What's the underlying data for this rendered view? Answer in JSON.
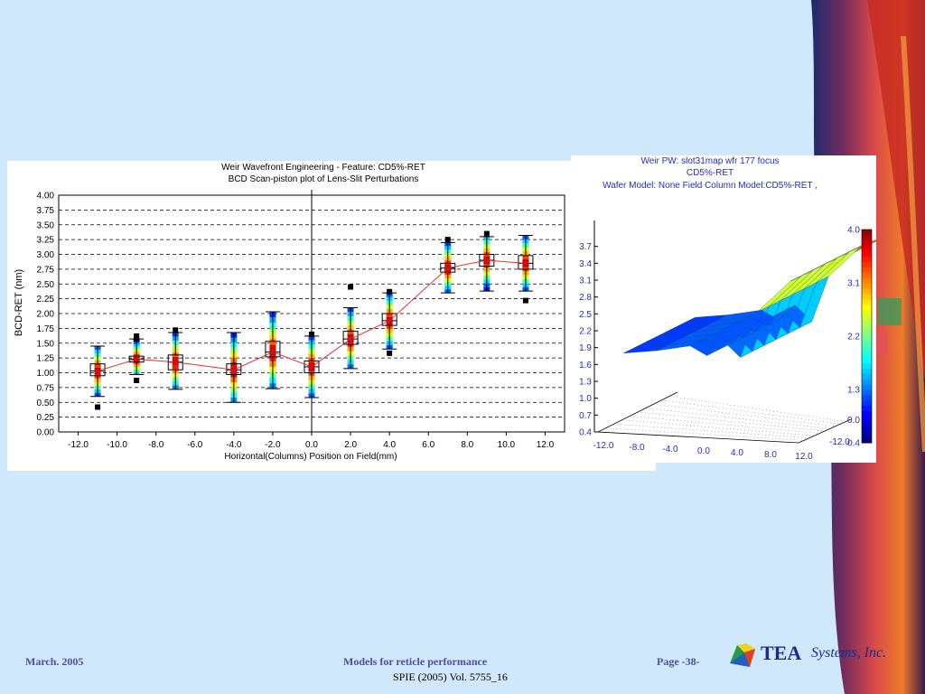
{
  "footer": {
    "date": "March. 2005",
    "title": "Models for reticle performance",
    "page": "Page -38-",
    "citation": "SPIE (2005) Vol. 5755_16"
  },
  "logo": {
    "text": "TEA",
    "sub": "Systems, Inc."
  },
  "colors": {
    "background": "#cfe8fb",
    "fit_line": "#e03030",
    "text_blue": "#1f2fbf"
  },
  "chart_data": [
    {
      "type": "box",
      "title": "Weir Wavefront Engineering - Feature: CD5%-RET",
      "subtitle": "BCD Scan-piston plot of Lens-Slit Perturbations",
      "xlabel": "Horizontal(Columns) Position on Field(mm)",
      "ylabel": "BCD-RET (nm)",
      "xlim": [
        -13,
        13
      ],
      "ylim": [
        0,
        4
      ],
      "xticks": [
        "-12.0",
        "-10.0",
        "-8.0",
        "-6.0",
        "-4.0",
        "-2.0",
        "0.0",
        "2.0",
        "4.0",
        "6.0",
        "8.0",
        "10.0",
        "12.0"
      ],
      "yticks": [
        "0.00",
        "0.25",
        "0.50",
        "0.75",
        "1.00",
        "1.25",
        "1.50",
        "1.75",
        "2.00",
        "2.25",
        "2.50",
        "2.75",
        "3.00",
        "3.25",
        "3.50",
        "3.75",
        "4.00"
      ],
      "grid": "horizontal dashed",
      "boxes": [
        {
          "x": -11,
          "min": 0.6,
          "q1": 0.95,
          "median": 1.03,
          "q3": 1.15,
          "max": 1.45,
          "outliers": [
            0.42
          ]
        },
        {
          "x": -9,
          "min": 0.97,
          "q1": 1.18,
          "median": 1.23,
          "q3": 1.28,
          "max": 1.57,
          "outliers": [
            0.87,
            1.57,
            1.62
          ]
        },
        {
          "x": -7,
          "min": 0.72,
          "q1": 1.05,
          "median": 1.18,
          "q3": 1.3,
          "max": 1.68,
          "outliers": [
            1.72
          ]
        },
        {
          "x": -4,
          "min": 0.5,
          "q1": 0.97,
          "median": 1.05,
          "q3": 1.15,
          "max": 1.68,
          "outliers": []
        },
        {
          "x": -2,
          "min": 0.73,
          "q1": 1.27,
          "median": 1.35,
          "q3": 1.53,
          "max": 2.03,
          "outliers": []
        },
        {
          "x": 0,
          "min": 0.58,
          "q1": 1.0,
          "median": 1.1,
          "q3": 1.2,
          "max": 1.62,
          "outliers": [
            1.65
          ]
        },
        {
          "x": 2,
          "min": 1.07,
          "q1": 1.48,
          "median": 1.57,
          "q3": 1.7,
          "max": 2.1,
          "outliers": [
            2.45
          ]
        },
        {
          "x": 4,
          "min": 1.4,
          "q1": 1.8,
          "median": 1.88,
          "q3": 2.0,
          "max": 2.35,
          "outliers": [
            1.33,
            2.37
          ]
        },
        {
          "x": 7,
          "min": 2.35,
          "q1": 2.7,
          "median": 2.77,
          "q3": 2.85,
          "max": 3.2,
          "outliers": [
            3.25
          ]
        },
        {
          "x": 9,
          "min": 2.38,
          "q1": 2.8,
          "median": 2.9,
          "q3": 3.0,
          "max": 3.3,
          "outliers": [
            3.35
          ]
        },
        {
          "x": 11,
          "min": 2.38,
          "q1": 2.75,
          "median": 2.85,
          "q3": 2.98,
          "max": 3.32,
          "outliers": [
            2.22
          ]
        }
      ],
      "fit_line": [
        [
          -11,
          1.03
        ],
        [
          -9,
          1.23
        ],
        [
          -7,
          1.18
        ],
        [
          -4,
          1.05
        ],
        [
          -2,
          1.35
        ],
        [
          0,
          1.1
        ],
        [
          2,
          1.57
        ],
        [
          4,
          1.88
        ],
        [
          7,
          2.77
        ],
        [
          9,
          2.9
        ],
        [
          11,
          2.85
        ]
      ]
    },
    {
      "type": "surface3d",
      "title": "Weir PW: slot31map wfr 177 focus",
      "subtitle": "CD5%-RET",
      "caption": "Wafer Model: None  Field Column Model:CD5%-RET ,",
      "zticks": [
        "0.4",
        "0.7",
        "1.0",
        "1.3",
        "1.6",
        "1.9",
        "2.2",
        "2.5",
        "2.8",
        "3.1",
        "3.4",
        "3.7"
      ],
      "xticks": [
        "-12.0",
        "-8.0",
        "-4.0",
        "0.0",
        "4.0",
        "8.0",
        "12.0"
      ],
      "yticks": [
        "-12.0",
        "0.0"
      ],
      "zlim": [
        0.4,
        4.0
      ],
      "colorbar_ticks": [
        "4.0",
        "3.1",
        "2.2",
        "1.3",
        "0.4"
      ],
      "x": [
        -12,
        -8,
        -4,
        -2,
        0,
        2,
        4,
        8,
        12
      ],
      "z": [
        1.0,
        1.1,
        1.25,
        1.05,
        1.4,
        1.05,
        2.1,
        2.85,
        3.2
      ]
    }
  ]
}
